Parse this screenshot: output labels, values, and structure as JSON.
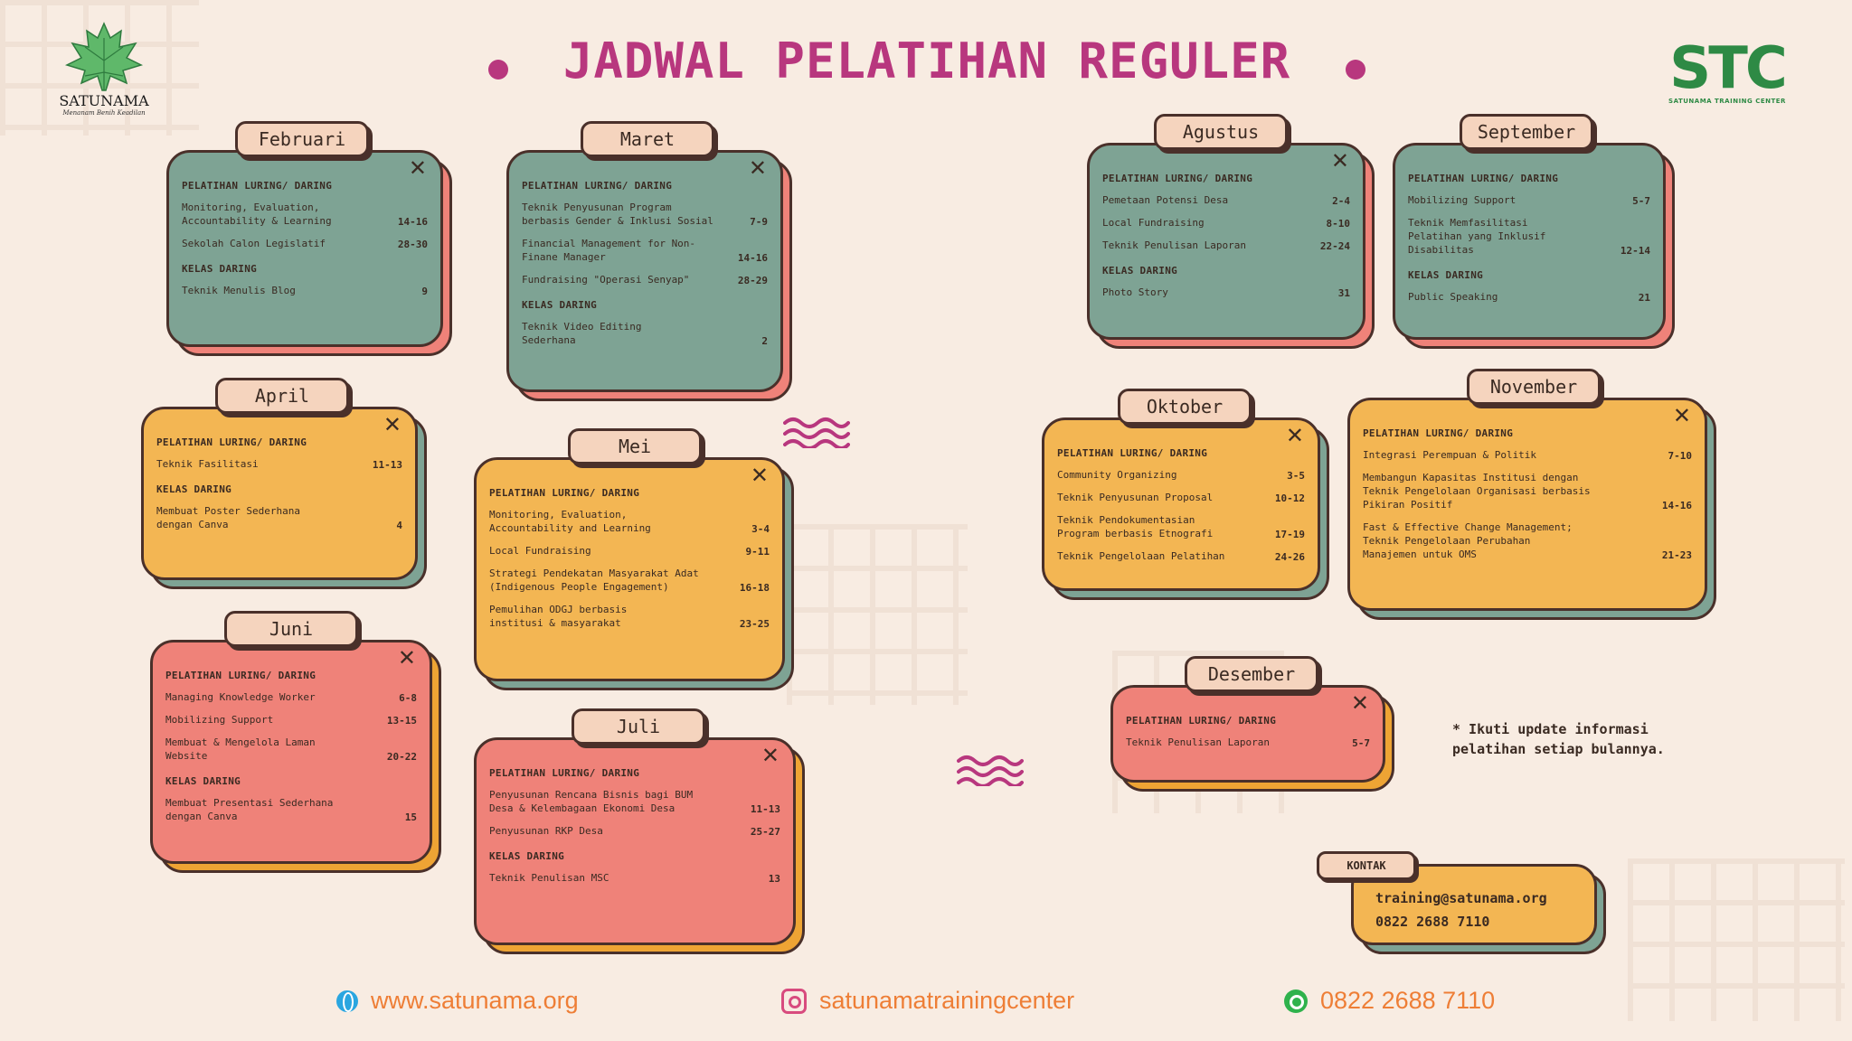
{
  "header": {
    "title": "JADWAL PELATIHAN REGULER",
    "logo_left": {
      "name": "SATUNAMA",
      "tagline": "Menanam Benih Keadilan"
    },
    "logo_right": {
      "name": "STC",
      "sub": "SATUNAMA TRAINING CENTER"
    }
  },
  "colors": {
    "title": "#b8377e",
    "green": "#7ea394",
    "yellow": "#f3b653",
    "pink": "#ef8279",
    "orange": "#eea434",
    "footer_text": "#ee7e36"
  },
  "months": {
    "februari": {
      "name": "Februari",
      "sections": [
        {
          "title": "PELATIHAN LURING/ DARING",
          "items": [
            {
              "text": "Monitoring, Evaluation,\nAccountability & Learning",
              "date": "14-16"
            },
            {
              "text": "Sekolah Calon Legislatif",
              "date": "28-30"
            }
          ]
        },
        {
          "title": "KELAS DARING",
          "items": [
            {
              "text": "Teknik Menulis Blog",
              "date": "9"
            }
          ]
        }
      ]
    },
    "maret": {
      "name": "Maret",
      "sections": [
        {
          "title": "PELATIHAN LURING/ DARING",
          "items": [
            {
              "text": "Teknik Penyusunan Program\nberbasis Gender & Inklusi Sosial",
              "date": "7-9"
            },
            {
              "text": "Financial Management for Non-\nFinane Manager",
              "date": "14-16"
            },
            {
              "text": "Fundraising \"Operasi Senyap\"",
              "date": "28-29"
            }
          ]
        },
        {
          "title": "KELAS DARING",
          "items": [
            {
              "text": "Teknik Video Editing\nSederhana",
              "date": "2"
            }
          ]
        }
      ]
    },
    "april": {
      "name": "April",
      "sections": [
        {
          "title": "PELATIHAN LURING/ DARING",
          "items": [
            {
              "text": "Teknik Fasilitasi",
              "date": "11-13"
            }
          ]
        },
        {
          "title": "KELAS DARING",
          "items": [
            {
              "text": "Membuat Poster Sederhana\ndengan Canva",
              "date": "4"
            }
          ]
        }
      ]
    },
    "mei": {
      "name": "Mei",
      "sections": [
        {
          "title": "PELATIHAN LURING/ DARING",
          "items": [
            {
              "text": "Monitoring, Evaluation,\nAccountability and Learning",
              "date": "3-4"
            },
            {
              "text": "Local Fundraising",
              "date": "9-11"
            },
            {
              "text": "Strategi Pendekatan Masyarakat Adat\n(Indigenous People Engagement)",
              "date": "16-18"
            },
            {
              "text": "Pemulihan ODGJ berbasis\ninstitusi & masyarakat",
              "date": "23-25"
            }
          ]
        }
      ]
    },
    "juni": {
      "name": "Juni",
      "sections": [
        {
          "title": "PELATIHAN LURING/ DARING",
          "items": [
            {
              "text": "Managing Knowledge Worker",
              "date": "6-8"
            },
            {
              "text": "Mobilizing Support",
              "date": "13-15"
            },
            {
              "text": "Membuat & Mengelola Laman\nWebsite",
              "date": "20-22"
            }
          ]
        },
        {
          "title": "KELAS DARING",
          "items": [
            {
              "text": "Membuat Presentasi Sederhana\ndengan Canva",
              "date": "15"
            }
          ]
        }
      ]
    },
    "juli": {
      "name": "Juli",
      "sections": [
        {
          "title": "PELATIHAN LURING/ DARING",
          "items": [
            {
              "text": "Penyusunan Rencana Bisnis bagi BUM\nDesa & Kelembagaan Ekonomi Desa",
              "date": "11-13"
            },
            {
              "text": "Penyusunan RKP Desa",
              "date": "25-27"
            }
          ]
        },
        {
          "title": "KELAS DARING",
          "items": [
            {
              "text": "Teknik Penulisan MSC",
              "date": "13"
            }
          ]
        }
      ]
    },
    "agustus": {
      "name": "Agustus",
      "sections": [
        {
          "title": "PELATIHAN LURING/ DARING",
          "items": [
            {
              "text": "Pemetaan Potensi Desa",
              "date": "2-4"
            },
            {
              "text": "Local Fundraising",
              "date": "8-10"
            },
            {
              "text": "Teknik Penulisan Laporan",
              "date": "22-24"
            }
          ]
        },
        {
          "title": "KELAS DARING",
          "items": [
            {
              "text": "Photo Story",
              "date": "31"
            }
          ]
        }
      ]
    },
    "september": {
      "name": "September",
      "sections": [
        {
          "title": "PELATIHAN LURING/ DARING",
          "items": [
            {
              "text": "Mobilizing Support",
              "date": "5-7"
            },
            {
              "text": "Teknik Memfasilitasi\nPelatihan yang Inklusif\nDisabilitas",
              "date": "12-14"
            }
          ]
        },
        {
          "title": "KELAS DARING",
          "items": [
            {
              "text": "Public Speaking",
              "date": "21"
            }
          ]
        }
      ]
    },
    "oktober": {
      "name": "Oktober",
      "sections": [
        {
          "title": "PELATIHAN LURING/ DARING",
          "items": [
            {
              "text": "Community Organizing",
              "date": "3-5"
            },
            {
              "text": "Teknik Penyusunan Proposal",
              "date": "10-12"
            },
            {
              "text": "Teknik Pendokumentasian\nProgram berbasis Etnografi",
              "date": "17-19"
            },
            {
              "text": "Teknik Pengelolaan Pelatihan",
              "date": "24-26"
            }
          ]
        }
      ]
    },
    "november": {
      "name": "November",
      "sections": [
        {
          "title": "PELATIHAN LURING/ DARING",
          "items": [
            {
              "text": "Integrasi Perempuan & Politik",
              "date": "7-10"
            },
            {
              "text": "Membangun Kapasitas Institusi dengan\nTeknik Pengelolaan Organisasi berbasis\nPikiran Positif",
              "date": "14-16"
            },
            {
              "text": "Fast & Effective Change Management;\nTeknik Pengelolaan Perubahan\nManajemen untuk OMS",
              "date": "21-23"
            }
          ]
        }
      ]
    },
    "desember": {
      "name": "Desember",
      "sections": [
        {
          "title": "PELATIHAN LURING/ DARING",
          "items": [
            {
              "text": "Teknik Penulisan Laporan",
              "date": "5-7"
            }
          ]
        }
      ]
    }
  },
  "note": "* Ikuti update informasi\npelatihan setiap bulannya.",
  "kontak": {
    "label": "KONTAK",
    "email": "training@satunama.org",
    "phone": "0822 2688 7110"
  },
  "footer": {
    "website": {
      "icon": "globe-icon",
      "text": "www.satunama.org"
    },
    "instagram": {
      "icon": "instagram-icon",
      "text": "satunamatrainingcenter"
    },
    "whatsapp": {
      "icon": "whatsapp-icon",
      "text": "0822 2688 7110"
    }
  }
}
